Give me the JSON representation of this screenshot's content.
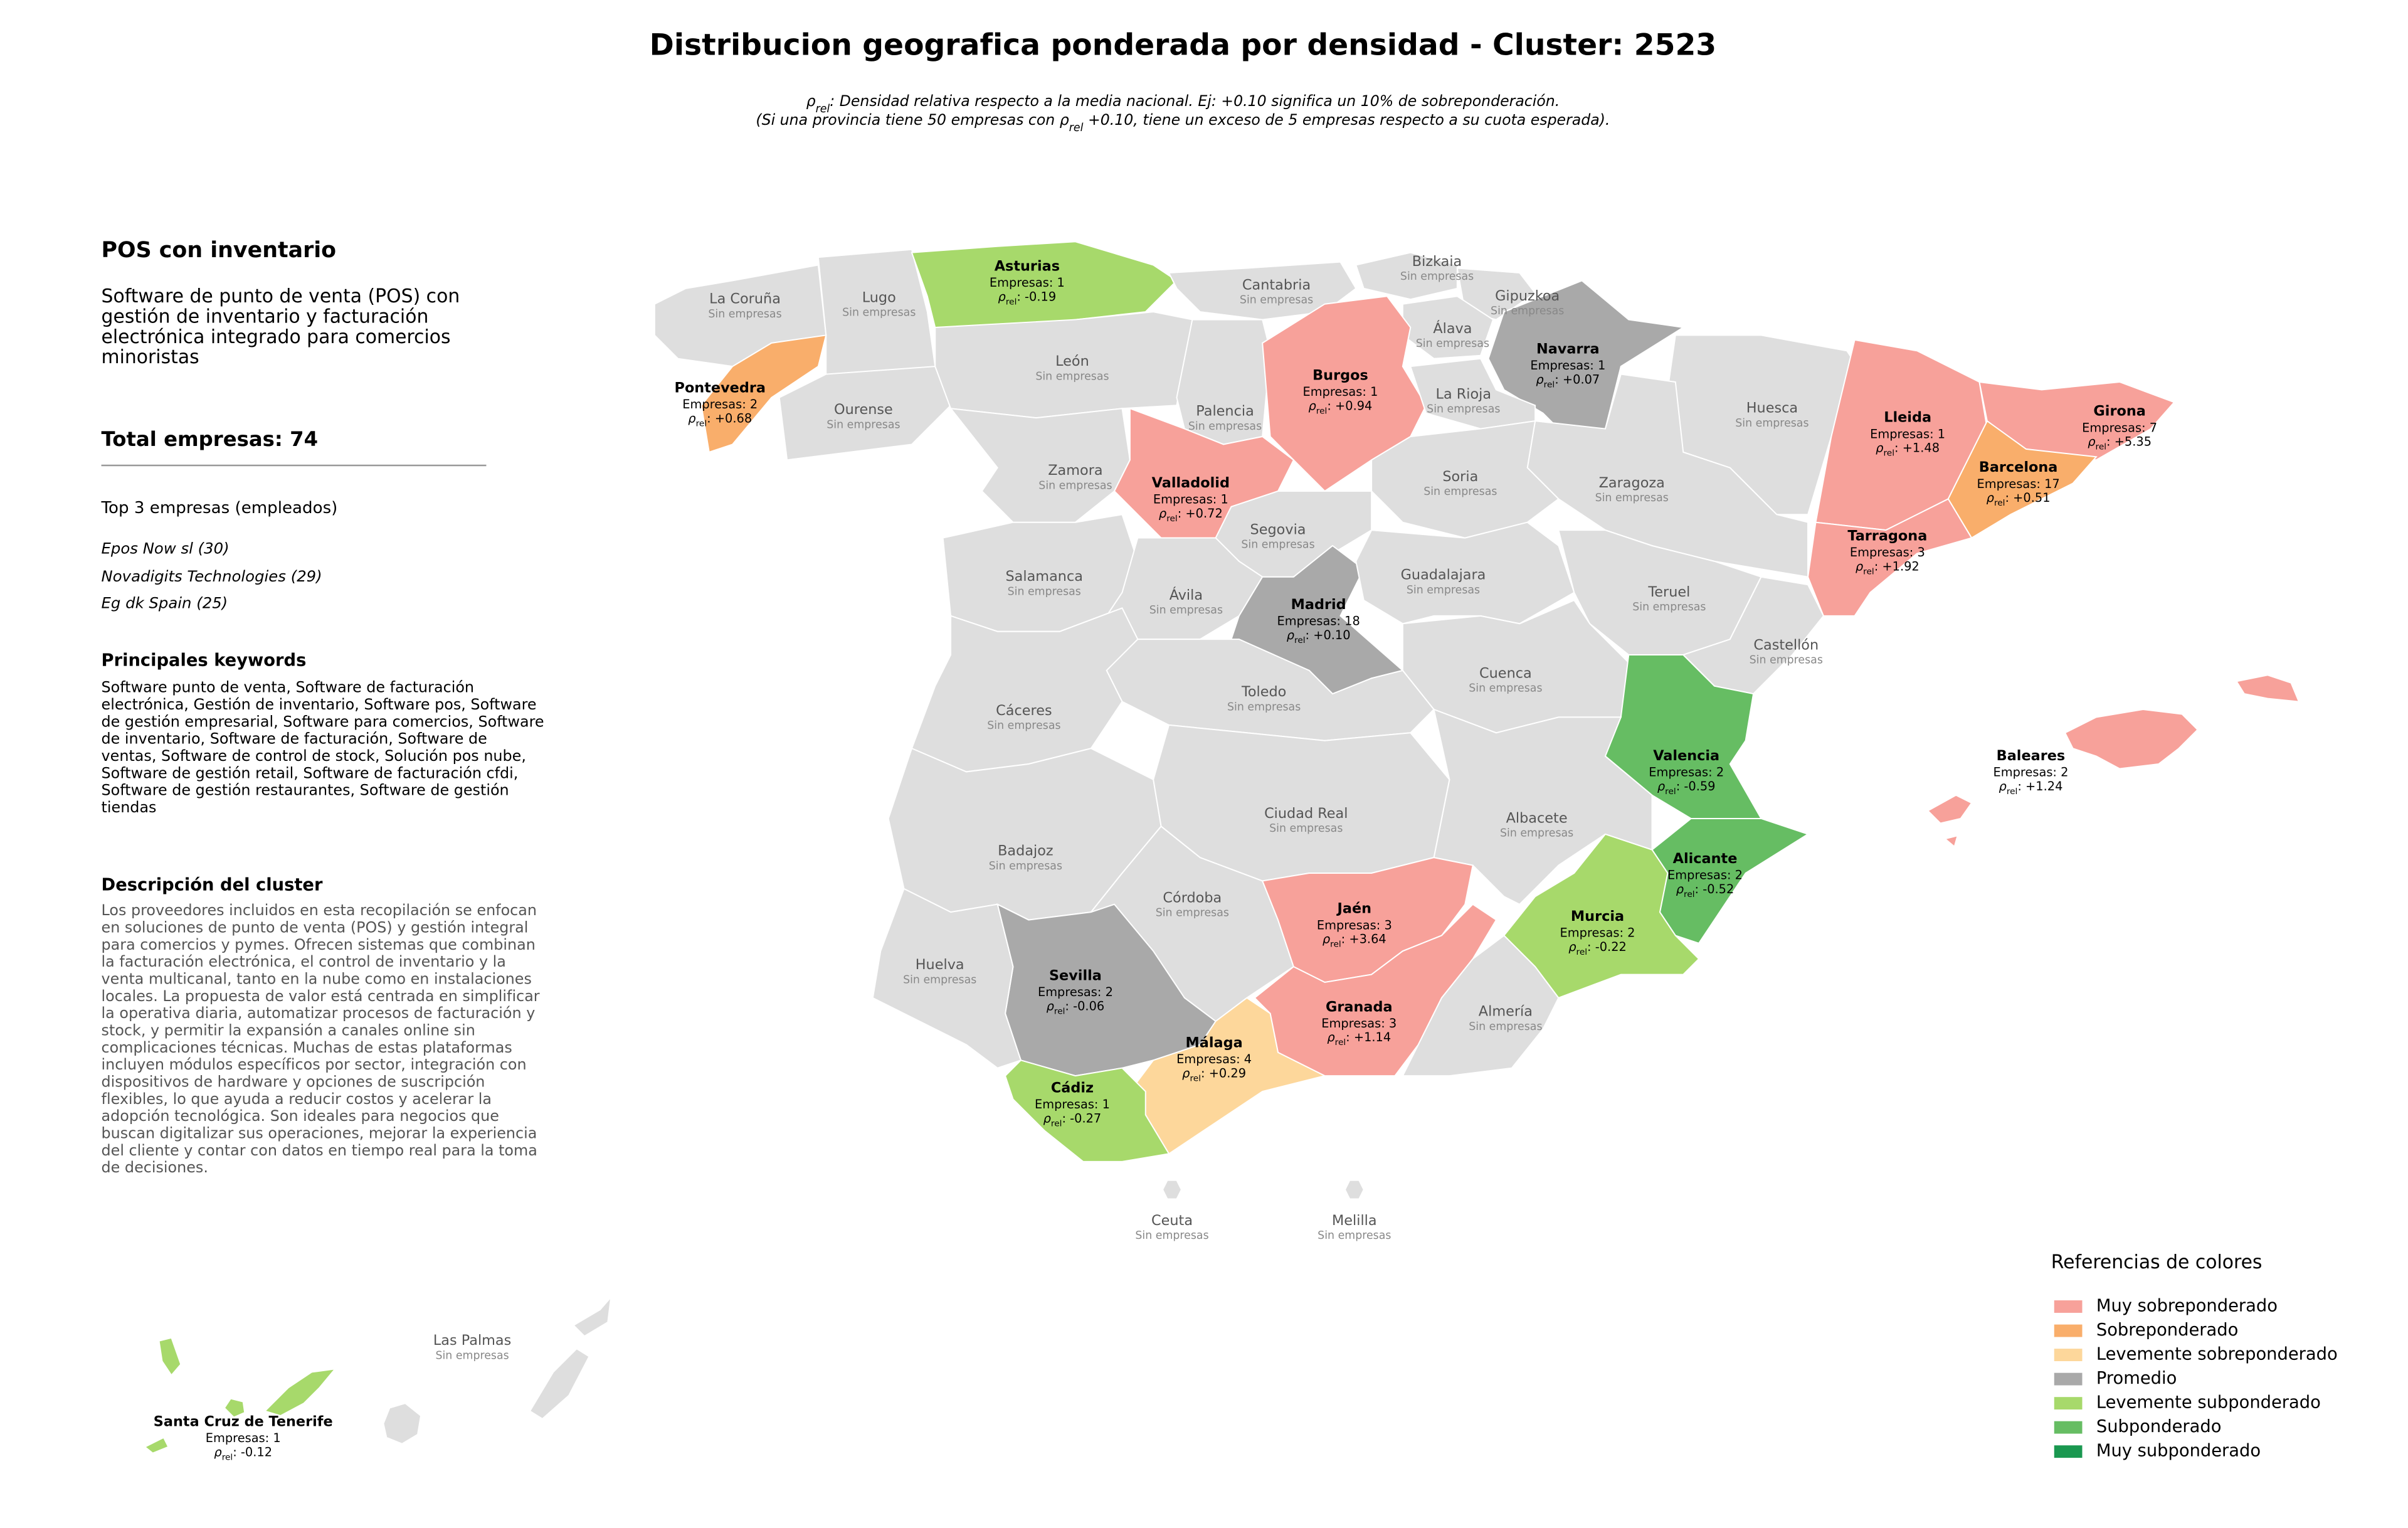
{
  "title": "Distribucion geografica ponderada por densidad - Cluster: 2523",
  "subtitle": [
    [
      {
        "text": "ρ"
      },
      {
        "sub": "rel"
      },
      {
        "text": ": Densidad relativa respecto a la media nacional. Ej: +0.10 significa un 10% de sobreponderación."
      }
    ],
    [
      {
        "text": "(Si una provincia tiene 50 empresas con "
      },
      {
        "text": "ρ"
      },
      {
        "sub": "rel"
      },
      {
        "text": " +0.10, tiene un exceso de 5 empresas respecto a su cuota esperada)."
      }
    ]
  ],
  "panel": {
    "heading": "POS con inventario",
    "description": "Software de punto de venta (POS) con gestión de inventario y facturación electrónica integrado para comercios minoristas",
    "total_label": "Total empresas: ",
    "total": 74,
    "top_heading": "Top 3 empresas (empleados)",
    "top": [
      "Epos Now sl (30)",
      "Novadigits Technologies (29)",
      "Eg dk Spain (25)"
    ],
    "keywords_heading": "Principales keywords",
    "keywords": "Software punto de venta, Software de facturación electrónica, Gestión de inventario, Software pos, Software de gestión empresarial, Software para comercios, Software de inventario, Software de facturación, Software de ventas, Software de control de stock, Solución pos nube, Software de gestión retail, Software de facturación cfdi, Software de gestión restaurantes, Software de gestión tiendas",
    "cluster_heading": "Descripción del cluster",
    "cluster_text": "Los proveedores incluidos en esta recopilación se enfocan en soluciones de punto de venta (POS) y gestión integral para comercios y pymes. Ofrecen sistemas que combinan la facturación electrónica, el control de inventario y la venta multicanal, tanto en la nube como en instalaciones locales. La propuesta de valor está centrada en simplificar la operativa diaria, automatizar procesos de facturación y stock, y permitir la expansión a canales online sin complicaciones técnicas. Muchas de estas plataformas incluyen módulos específicos por sector, integración con dispositivos de hardware y opciones de suscripción flexibles, lo que ayuda a reducir costos y acelerar la adopción tecnológica. Son ideales para negocios que buscan digitalizar sus operaciones, mejorar la experiencia del cliente y contar con datos en tiempo real para la toma de decisiones."
  },
  "map": {
    "empty_color": "#dedede",
    "empty_label": "Sin empresas",
    "empresas_prefix": "Empresas: ",
    "rho_symbol": "ρ",
    "rho_subscript": "rel",
    "rho_separator": ": ",
    "provinces": [
      {
        "name": "La Coruña"
      },
      {
        "name": "Lugo"
      },
      {
        "name": "Asturias",
        "empresas": 1,
        "rho": "-0.19",
        "category": "Levemente subponderado"
      },
      {
        "name": "Cantabria"
      },
      {
        "name": "Bizkaia"
      },
      {
        "name": "Gipuzkoa"
      },
      {
        "name": "Álava"
      },
      {
        "name": "Navarra",
        "empresas": 1,
        "rho": "+0.07",
        "category": "Promedio"
      },
      {
        "name": "Pontevedra",
        "empresas": 2,
        "rho": "+0.68",
        "category": "Sobreponderado"
      },
      {
        "name": "Ourense"
      },
      {
        "name": "León"
      },
      {
        "name": "Palencia"
      },
      {
        "name": "Burgos",
        "empresas": 1,
        "rho": "+0.94",
        "category": "Muy sobreponderado"
      },
      {
        "name": "La Rioja"
      },
      {
        "name": "Huesca"
      },
      {
        "name": "Lleida",
        "empresas": 1,
        "rho": "+1.48",
        "category": "Muy sobreponderado"
      },
      {
        "name": "Girona",
        "empresas": 7,
        "rho": "+5.35",
        "category": "Muy sobreponderado"
      },
      {
        "name": "Barcelona",
        "empresas": 17,
        "rho": "+0.51",
        "category": "Sobreponderado"
      },
      {
        "name": "Tarragona",
        "empresas": 3,
        "rho": "+1.92",
        "category": "Muy sobreponderado"
      },
      {
        "name": "Zaragoza"
      },
      {
        "name": "Soria"
      },
      {
        "name": "Zamora"
      },
      {
        "name": "Valladolid",
        "empresas": 1,
        "rho": "+0.72",
        "category": "Muy sobreponderado"
      },
      {
        "name": "Segovia"
      },
      {
        "name": "Salamanca"
      },
      {
        "name": "Ávila"
      },
      {
        "name": "Madrid",
        "empresas": 18,
        "rho": "+0.10",
        "category": "Promedio"
      },
      {
        "name": "Guadalajara"
      },
      {
        "name": "Teruel"
      },
      {
        "name": "Castellón"
      },
      {
        "name": "Cuenca"
      },
      {
        "name": "Valencia",
        "empresas": 2,
        "rho": "-0.59",
        "category": "Subponderado"
      },
      {
        "name": "Alicante",
        "empresas": 2,
        "rho": "-0.52",
        "category": "Subponderado"
      },
      {
        "name": "Murcia",
        "empresas": 2,
        "rho": "-0.22",
        "category": "Levemente subponderado"
      },
      {
        "name": "Albacete"
      },
      {
        "name": "Toledo"
      },
      {
        "name": "Cáceres"
      },
      {
        "name": "Badajoz"
      },
      {
        "name": "Ciudad Real"
      },
      {
        "name": "Córdoba"
      },
      {
        "name": "Jaén",
        "empresas": 3,
        "rho": "+3.64",
        "category": "Muy sobreponderado"
      },
      {
        "name": "Granada",
        "empresas": 3,
        "rho": "+1.14",
        "category": "Muy sobreponderado"
      },
      {
        "name": "Almería"
      },
      {
        "name": "Sevilla",
        "empresas": 2,
        "rho": "-0.06",
        "category": "Promedio"
      },
      {
        "name": "Huelva"
      },
      {
        "name": "Málaga",
        "empresas": 4,
        "rho": "+0.29",
        "category": "Levemente sobreponderado"
      },
      {
        "name": "Cádiz",
        "empresas": 1,
        "rho": "-0.27",
        "category": "Levemente subponderado"
      },
      {
        "name": "Ceuta"
      },
      {
        "name": "Melilla"
      },
      {
        "name": "Baleares",
        "empresas": 2,
        "rho": "+1.24",
        "category": "Muy sobreponderado"
      },
      {
        "name": "Las Palmas"
      },
      {
        "name": "Santa Cruz de Tenerife",
        "empresas": 1,
        "rho": "-0.12",
        "category": "Levemente subponderado"
      }
    ]
  },
  "legend": {
    "title": "Referencias de colores",
    "items": [
      {
        "label": "Muy sobreponderado",
        "color": "#f7a19a"
      },
      {
        "label": "Sobreponderado",
        "color": "#f9ae6b"
      },
      {
        "label": "Levemente sobreponderado",
        "color": "#fdd79b"
      },
      {
        "label": "Promedio",
        "color": "#a9a9a9"
      },
      {
        "label": "Levemente subponderado",
        "color": "#a7d96b"
      },
      {
        "label": "Subponderado",
        "color": "#66bd63"
      },
      {
        "label": "Muy subponderado",
        "color": "#1a9850"
      }
    ]
  }
}
